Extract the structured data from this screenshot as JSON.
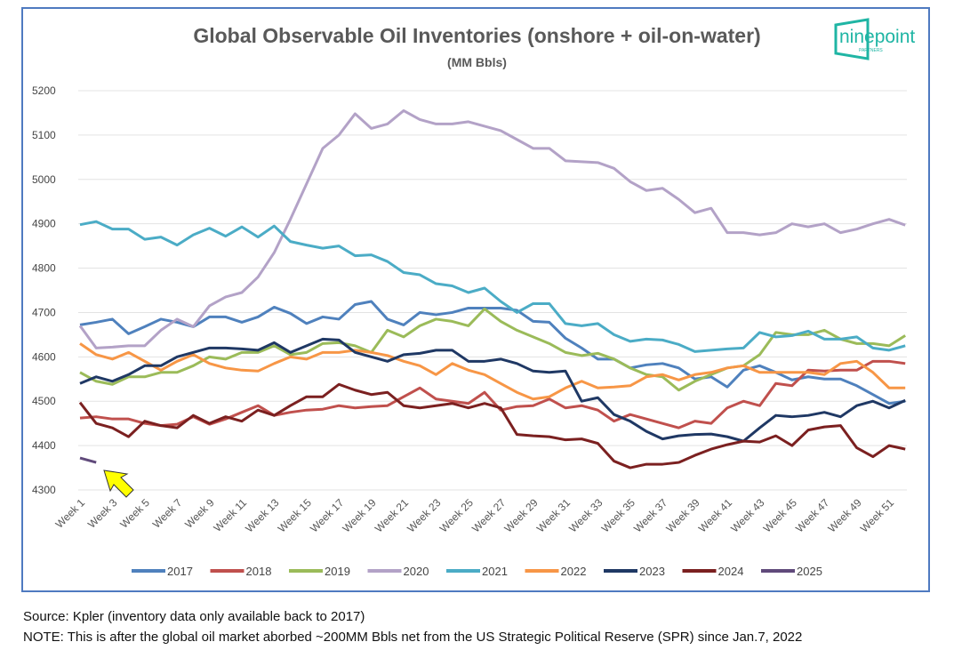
{
  "chart_data": {
    "type": "line",
    "title": "Global Observable Oil Inventories (onshore + oil-on-water)",
    "subtitle": "(MM Bbls)",
    "xlabel": "",
    "ylabel": "",
    "ylim": [
      4300,
      5200
    ],
    "yticks": [
      4300,
      4400,
      4500,
      4600,
      4700,
      4800,
      4900,
      5000,
      5100,
      5200
    ],
    "xtick_labels": [
      "Week 1",
      "Week 3",
      "Week 5",
      "Week 7",
      "Week 9",
      "Week 11",
      "Week 13",
      "Week 15",
      "Week 17",
      "Week 19",
      "Week 21",
      "Week 23",
      "Week 25",
      "Week 27",
      "Week 29",
      "Week 31",
      "Week 33",
      "Week 35",
      "Week 37",
      "Week 39",
      "Week 41",
      "Week 43",
      "Week 45",
      "Week 47",
      "Week 49",
      "Week 51"
    ],
    "grid": true,
    "legend": "bottom",
    "series": [
      {
        "name": "2017",
        "color": "#4f81bd",
        "values": [
          4672,
          4678,
          4685,
          4652,
          4668,
          4685,
          4678,
          4668,
          4690,
          4690,
          4678,
          4690,
          4712,
          4698,
          4675,
          4690,
          4685,
          4718,
          4725,
          4685,
          4672,
          4700,
          4695,
          4700,
          4710,
          4710,
          4710,
          4705,
          4680,
          4678,
          4642,
          4620,
          4595,
          4595,
          4575,
          4582,
          4585,
          4575,
          4550,
          4555,
          4532,
          4570,
          4580,
          4565,
          4548,
          4555,
          4550,
          4550,
          4535,
          4515,
          4495,
          4500
        ]
      },
      {
        "name": "2018",
        "color": "#c0504d",
        "values": [
          4462,
          4465,
          4460,
          4460,
          4450,
          4445,
          4448,
          4465,
          4448,
          4460,
          4475,
          4490,
          4468,
          4475,
          4480,
          4482,
          4490,
          4485,
          4488,
          4490,
          4510,
          4530,
          4505,
          4500,
          4495,
          4520,
          4480,
          4488,
          4490,
          4505,
          4485,
          4490,
          4480,
          4455,
          4470,
          4460,
          4450,
          4440,
          4455,
          4450,
          4485,
          4500,
          4490,
          4540,
          4535,
          4570,
          4568,
          4570,
          4570,
          4590,
          4590,
          4585
        ]
      },
      {
        "name": "2019",
        "color": "#9bbb59",
        "values": [
          4565,
          4545,
          4538,
          4555,
          4555,
          4565,
          4565,
          4580,
          4600,
          4595,
          4610,
          4610,
          4625,
          4605,
          4610,
          4630,
          4632,
          4625,
          4610,
          4660,
          4645,
          4670,
          4685,
          4680,
          4670,
          4708,
          4680,
          4660,
          4645,
          4630,
          4610,
          4603,
          4608,
          4595,
          4575,
          4560,
          4555,
          4525,
          4545,
          4560,
          4575,
          4580,
          4605,
          4655,
          4650,
          4650,
          4660,
          4640,
          4630,
          4630,
          4625,
          4648
        ]
      },
      {
        "name": "2020",
        "color": "#b3a2c7",
        "values": [
          4670,
          4620,
          4622,
          4625,
          4625,
          4660,
          4685,
          4668,
          4715,
          4735,
          4745,
          4780,
          4835,
          4910,
          4990,
          5070,
          5100,
          5148,
          5115,
          5125,
          5155,
          5135,
          5125,
          5125,
          5130,
          5120,
          5110,
          5090,
          5070,
          5070,
          5042,
          5040,
          5038,
          5025,
          4995,
          4975,
          4980,
          4955,
          4925,
          4935,
          4880,
          4880,
          4875,
          4880,
          4900,
          4893,
          4900,
          4880,
          4888,
          4900,
          4910,
          4897
        ]
      },
      {
        "name": "2021",
        "color": "#4bacc6",
        "values": [
          4898,
          4905,
          4888,
          4888,
          4865,
          4870,
          4852,
          4875,
          4890,
          4872,
          4893,
          4870,
          4895,
          4860,
          4852,
          4845,
          4850,
          4828,
          4830,
          4815,
          4790,
          4785,
          4765,
          4760,
          4745,
          4755,
          4725,
          4700,
          4720,
          4720,
          4675,
          4670,
          4675,
          4650,
          4635,
          4640,
          4638,
          4628,
          4612,
          4615,
          4618,
          4620,
          4655,
          4645,
          4648,
          4658,
          4640,
          4640,
          4645,
          4620,
          4615,
          4625
        ]
      },
      {
        "name": "2022",
        "color": "#f79646",
        "values": [
          4630,
          4605,
          4595,
          4610,
          4590,
          4570,
          4590,
          4605,
          4585,
          4575,
          4570,
          4568,
          4585,
          4600,
          4595,
          4610,
          4610,
          4615,
          4610,
          4603,
          4590,
          4580,
          4560,
          4585,
          4570,
          4560,
          4540,
          4520,
          4505,
          4510,
          4530,
          4545,
          4530,
          4532,
          4535,
          4555,
          4560,
          4548,
          4560,
          4565,
          4575,
          4580,
          4565,
          4565,
          4565,
          4565,
          4560,
          4585,
          4590,
          4565,
          4530,
          4530
        ]
      },
      {
        "name": "2023",
        "color": "#1f3864",
        "values": [
          4540,
          4555,
          4545,
          4560,
          4580,
          4580,
          4600,
          4610,
          4620,
          4620,
          4618,
          4615,
          4632,
          4610,
          4625,
          4640,
          4638,
          4610,
          4600,
          4590,
          4605,
          4608,
          4615,
          4615,
          4590,
          4590,
          4595,
          4585,
          4568,
          4565,
          4568,
          4500,
          4508,
          4470,
          4455,
          4432,
          4415,
          4422,
          4425,
          4426,
          4420,
          4410,
          4440,
          4468,
          4465,
          4468,
          4475,
          4465,
          4490,
          4500,
          4485,
          4502
        ]
      },
      {
        "name": "2024",
        "color": "#7b2020",
        "values": [
          4497,
          4450,
          4440,
          4420,
          4455,
          4445,
          4440,
          4468,
          4450,
          4465,
          4455,
          4480,
          4468,
          4490,
          4510,
          4510,
          4538,
          4525,
          4515,
          4520,
          4490,
          4485,
          4490,
          4495,
          4485,
          4495,
          4485,
          4425,
          4422,
          4420,
          4413,
          4415,
          4405,
          4365,
          4350,
          4358,
          4358,
          4362,
          4378,
          4392,
          4402,
          4410,
          4408,
          4422,
          4400,
          4435,
          4442,
          4445,
          4395,
          4375,
          4400,
          4392
        ]
      },
      {
        "name": "2025",
        "color": "#604a7b",
        "values": [
          4372,
          4362
        ]
      }
    ]
  },
  "logo": {
    "text": "ninepoint",
    "subtext": "PARTNERS"
  },
  "footer": {
    "source": "Source: Kpler (inventory data only available back to 2017)",
    "note": "NOTE: This is after the global oil market aborbed ~200MM Bbls net from the US Strategic Political Reserve (SPR) since Jan.7, 2022"
  }
}
